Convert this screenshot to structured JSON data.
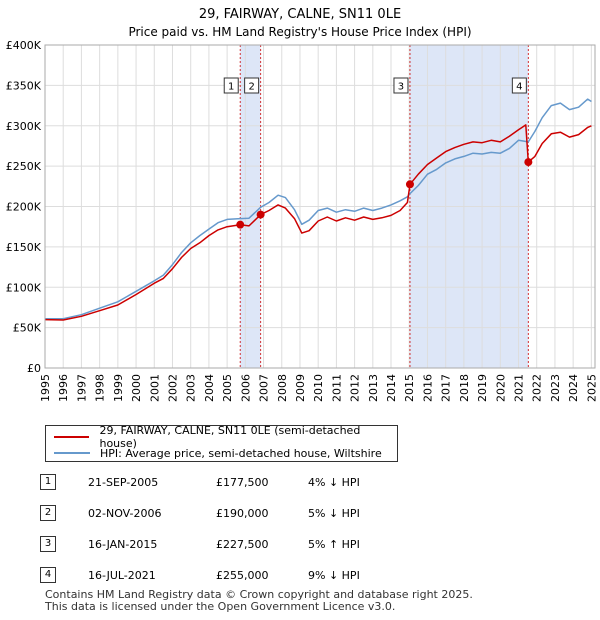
{
  "chart_data": {
    "type": "line",
    "title": "29, FAIRWAY, CALNE, SN11 0LE",
    "subtitle": "Price paid vs. HM Land Registry's House Price Index (HPI)",
    "xlabel": "",
    "ylabel": "",
    "xlim": [
      1995,
      2025.2
    ],
    "ylim": [
      0,
      400000
    ],
    "y_ticks": [
      0,
      50000,
      100000,
      150000,
      200000,
      250000,
      300000,
      350000,
      400000
    ],
    "y_tick_labels": [
      "£0",
      "£50K",
      "£100K",
      "£150K",
      "£200K",
      "£250K",
      "£300K",
      "£350K",
      "£400K"
    ],
    "x_ticks": [
      1995,
      1996,
      1997,
      1998,
      1999,
      2000,
      2001,
      2002,
      2003,
      2004,
      2005,
      2006,
      2007,
      2008,
      2009,
      2010,
      2011,
      2012,
      2013,
      2014,
      2015,
      2016,
      2017,
      2018,
      2019,
      2020,
      2021,
      2022,
      2023,
      2024,
      2025
    ],
    "x_tick_labels": [
      "1995",
      "1996",
      "1997",
      "1998",
      "1999",
      "2000",
      "2001",
      "2002",
      "2003",
      "2004",
      "2005",
      "2006",
      "2007",
      "2008",
      "2009",
      "2010",
      "2011",
      "2012",
      "2013",
      "2014",
      "2015",
      "2016",
      "2017",
      "2018",
      "2019",
      "2020",
      "2021",
      "2022",
      "2023",
      "2024",
      "2025"
    ],
    "grid": true,
    "shaded_periods": [
      [
        2005.72,
        2006.84
      ],
      [
        2015.04,
        2021.54
      ]
    ],
    "colors": {
      "price": "#cc0000",
      "hpi": "#6699cc",
      "shade": "#dde6f7",
      "marker_line": "#cc0000"
    },
    "series": [
      {
        "name": "29, FAIRWAY, CALNE, SN11 0LE (semi-detached house)",
        "color": "#cc0000",
        "points": [
          [
            1995.0,
            60000
          ],
          [
            1996.0,
            59500
          ],
          [
            1997.0,
            64000
          ],
          [
            1998.0,
            71000
          ],
          [
            1999.0,
            78000
          ],
          [
            2000.0,
            91000
          ],
          [
            2001.0,
            105000
          ],
          [
            2001.5,
            111000
          ],
          [
            2002.0,
            123000
          ],
          [
            2002.5,
            137000
          ],
          [
            2003.0,
            148000
          ],
          [
            2003.5,
            155000
          ],
          [
            2004.0,
            164000
          ],
          [
            2004.5,
            171000
          ],
          [
            2005.0,
            175000
          ],
          [
            2005.72,
            177500
          ],
          [
            2006.2,
            176000
          ],
          [
            2006.84,
            190000
          ],
          [
            2007.3,
            195000
          ],
          [
            2007.8,
            202000
          ],
          [
            2008.2,
            198000
          ],
          [
            2008.7,
            185000
          ],
          [
            2009.1,
            167000
          ],
          [
            2009.5,
            170000
          ],
          [
            2010.0,
            182000
          ],
          [
            2010.5,
            187000
          ],
          [
            2011.0,
            182000
          ],
          [
            2011.5,
            186000
          ],
          [
            2012.0,
            183000
          ],
          [
            2012.5,
            187000
          ],
          [
            2013.0,
            184000
          ],
          [
            2013.5,
            186000
          ],
          [
            2014.0,
            189000
          ],
          [
            2014.5,
            195000
          ],
          [
            2014.9,
            205000
          ],
          [
            2015.04,
            227500
          ],
          [
            2015.5,
            240000
          ],
          [
            2016.0,
            252000
          ],
          [
            2016.5,
            260000
          ],
          [
            2017.0,
            268000
          ],
          [
            2017.5,
            273000
          ],
          [
            2018.0,
            277000
          ],
          [
            2018.5,
            280000
          ],
          [
            2019.0,
            279000
          ],
          [
            2019.5,
            282000
          ],
          [
            2020.0,
            280000
          ],
          [
            2020.5,
            287000
          ],
          [
            2021.0,
            295000
          ],
          [
            2021.4,
            301000
          ],
          [
            2021.54,
            255000
          ],
          [
            2021.9,
            262000
          ],
          [
            2022.3,
            278000
          ],
          [
            2022.8,
            290000
          ],
          [
            2023.3,
            292000
          ],
          [
            2023.8,
            286000
          ],
          [
            2024.3,
            289000
          ],
          [
            2024.8,
            298000
          ],
          [
            2025.0,
            300000
          ]
        ]
      },
      {
        "name": "HPI: Average price, semi-detached house, Wiltshire",
        "color": "#6699cc",
        "points": [
          [
            1995.0,
            61000
          ],
          [
            1996.0,
            61000
          ],
          [
            1997.0,
            66000
          ],
          [
            1998.0,
            74000
          ],
          [
            1999.0,
            82000
          ],
          [
            2000.0,
            95000
          ],
          [
            2001.0,
            108000
          ],
          [
            2001.5,
            115000
          ],
          [
            2002.0,
            128000
          ],
          [
            2002.5,
            143000
          ],
          [
            2003.0,
            155000
          ],
          [
            2003.5,
            164000
          ],
          [
            2004.0,
            172000
          ],
          [
            2004.5,
            180000
          ],
          [
            2005.0,
            184000
          ],
          [
            2005.72,
            185000
          ],
          [
            2006.2,
            185500
          ],
          [
            2006.84,
            199000
          ],
          [
            2007.3,
            205000
          ],
          [
            2007.8,
            214000
          ],
          [
            2008.2,
            211000
          ],
          [
            2008.7,
            196000
          ],
          [
            2009.1,
            178000
          ],
          [
            2009.5,
            183000
          ],
          [
            2010.0,
            195000
          ],
          [
            2010.5,
            198000
          ],
          [
            2011.0,
            193000
          ],
          [
            2011.5,
            196000
          ],
          [
            2012.0,
            194000
          ],
          [
            2012.5,
            198000
          ],
          [
            2013.0,
            195000
          ],
          [
            2013.5,
            198000
          ],
          [
            2014.0,
            202000
          ],
          [
            2014.5,
            207000
          ],
          [
            2014.9,
            212000
          ],
          [
            2015.04,
            216000
          ],
          [
            2015.5,
            226000
          ],
          [
            2016.0,
            240000
          ],
          [
            2016.5,
            246000
          ],
          [
            2017.0,
            254000
          ],
          [
            2017.5,
            259000
          ],
          [
            2018.0,
            262000
          ],
          [
            2018.5,
            266000
          ],
          [
            2019.0,
            265000
          ],
          [
            2019.5,
            267000
          ],
          [
            2020.0,
            266000
          ],
          [
            2020.5,
            272000
          ],
          [
            2021.0,
            282000
          ],
          [
            2021.54,
            280000
          ],
          [
            2021.9,
            293000
          ],
          [
            2022.3,
            310000
          ],
          [
            2022.8,
            325000
          ],
          [
            2023.3,
            328000
          ],
          [
            2023.8,
            320000
          ],
          [
            2024.3,
            323000
          ],
          [
            2024.8,
            333000
          ],
          [
            2025.0,
            330000
          ]
        ]
      }
    ],
    "sales": [
      {
        "num": "1",
        "x": 2005.72,
        "price": 177500
      },
      {
        "num": "2",
        "x": 2006.84,
        "price": 190000
      },
      {
        "num": "3",
        "x": 2015.04,
        "price": 227500
      },
      {
        "num": "4",
        "x": 2021.54,
        "price": 255000
      }
    ]
  },
  "legend": {
    "price_label": "29, FAIRWAY, CALNE, SN11 0LE (semi-detached house)",
    "hpi_label": "HPI: Average price, semi-detached house, Wiltshire"
  },
  "sales_table": [
    {
      "num": "1",
      "date": "21-SEP-2005",
      "price": "£177,500",
      "hpi": "4% ↓ HPI"
    },
    {
      "num": "2",
      "date": "02-NOV-2006",
      "price": "£190,000",
      "hpi": "5% ↓ HPI"
    },
    {
      "num": "3",
      "date": "16-JAN-2015",
      "price": "£227,500",
      "hpi": "5% ↑ HPI"
    },
    {
      "num": "4",
      "date": "16-JUL-2021",
      "price": "£255,000",
      "hpi": "9% ↓ HPI"
    }
  ],
  "footer": {
    "line1": "Contains HM Land Registry data © Crown copyright and database right 2025.",
    "line2": "This data is licensed under the Open Government Licence v3.0."
  }
}
